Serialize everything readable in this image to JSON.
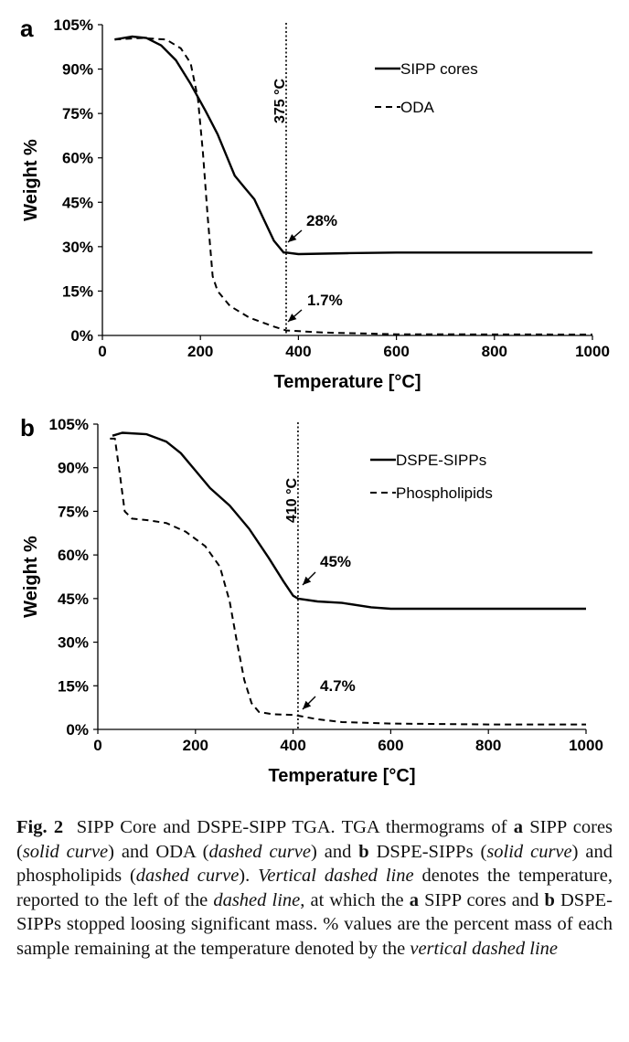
{
  "chart_data": [
    {
      "panel": "a",
      "type": "line",
      "xlabel": "Temperature [°C]",
      "ylabel": "Weight %",
      "xlim": [
        0,
        1000
      ],
      "ylim": [
        0,
        105
      ],
      "xticks": [
        "0",
        "200",
        "400",
        "600",
        "800",
        "1000"
      ],
      "yticks": [
        "0%",
        "15%",
        "30%",
        "45%",
        "60%",
        "75%",
        "90%",
        "105%"
      ],
      "vline": {
        "x": 375,
        "label": "375 °C"
      },
      "legend_position": "top-right",
      "series": [
        {
          "name": "SIPP cores",
          "style": "solid",
          "points": [
            [
              25,
              100
            ],
            [
              60,
              101
            ],
            [
              90,
              100.5
            ],
            [
              120,
              98
            ],
            [
              150,
              93
            ],
            [
              180,
              85
            ],
            [
              210,
              76
            ],
            [
              235,
              68
            ],
            [
              255,
              60
            ],
            [
              270,
              54
            ],
            [
              290,
              50
            ],
            [
              310,
              46
            ],
            [
              330,
              39
            ],
            [
              350,
              32
            ],
            [
              370,
              28
            ],
            [
              375,
              28
            ],
            [
              400,
              27.5
            ],
            [
              500,
              27.8
            ],
            [
              600,
              28
            ],
            [
              800,
              28
            ],
            [
              1000,
              28
            ]
          ]
        },
        {
          "name": "ODA",
          "style": "dashed",
          "points": [
            [
              25,
              100
            ],
            [
              80,
              100.5
            ],
            [
              130,
              100
            ],
            [
              160,
              97
            ],
            [
              180,
              92
            ],
            [
              195,
              80
            ],
            [
              205,
              62
            ],
            [
              215,
              40
            ],
            [
              225,
              20
            ],
            [
              235,
              15
            ],
            [
              260,
              10
            ],
            [
              300,
              6
            ],
            [
              350,
              3
            ],
            [
              375,
              1.7
            ],
            [
              450,
              1
            ],
            [
              600,
              0.4
            ],
            [
              1000,
              0.3
            ]
          ]
        }
      ],
      "annotations": [
        {
          "text": "28%",
          "x": 375,
          "y": 28
        },
        {
          "text": "1.7%",
          "x": 375,
          "y": 1.7
        }
      ]
    },
    {
      "panel": "b",
      "type": "line",
      "xlabel": "Temperature [°C]",
      "ylabel": "Weight %",
      "xlim": [
        0,
        1000
      ],
      "ylim": [
        0,
        105
      ],
      "xticks": [
        "0",
        "200",
        "400",
        "600",
        "800",
        "1000"
      ],
      "yticks": [
        "0%",
        "15%",
        "30%",
        "45%",
        "60%",
        "75%",
        "90%",
        "105%"
      ],
      "vline": {
        "x": 410,
        "label": "410 °C"
      },
      "legend_position": "top-right",
      "series": [
        {
          "name": "DSPE-SIPPs",
          "style": "solid",
          "points": [
            [
              30,
              101
            ],
            [
              50,
              102
            ],
            [
              100,
              101.5
            ],
            [
              140,
              99
            ],
            [
              170,
              95
            ],
            [
              200,
              89
            ],
            [
              230,
              83
            ],
            [
              270,
              77
            ],
            [
              310,
              69
            ],
            [
              350,
              59
            ],
            [
              380,
              51
            ],
            [
              400,
              46
            ],
            [
              410,
              45
            ],
            [
              450,
              44
            ],
            [
              500,
              43.5
            ],
            [
              560,
              42
            ],
            [
              600,
              41.5
            ],
            [
              800,
              41.5
            ],
            [
              1000,
              41.5
            ]
          ]
        },
        {
          "name": "Phospholipids",
          "style": "dashed",
          "points": [
            [
              25,
              100
            ],
            [
              35,
              100
            ],
            [
              45,
              88
            ],
            [
              55,
              75
            ],
            [
              70,
              72.5
            ],
            [
              100,
              72
            ],
            [
              140,
              71
            ],
            [
              180,
              68
            ],
            [
              220,
              63
            ],
            [
              250,
              56
            ],
            [
              270,
              44
            ],
            [
              285,
              30
            ],
            [
              300,
              17
            ],
            [
              315,
              9
            ],
            [
              330,
              6
            ],
            [
              360,
              5.2
            ],
            [
              400,
              5
            ],
            [
              410,
              4.7
            ],
            [
              450,
              3.5
            ],
            [
              500,
              2.5
            ],
            [
              600,
              2
            ],
            [
              800,
              1.7
            ],
            [
              1000,
              1.7
            ]
          ]
        }
      ],
      "annotations": [
        {
          "text": "45%",
          "x": 410,
          "y": 45
        },
        {
          "text": "4.7%",
          "x": 410,
          "y": 4.7
        }
      ]
    }
  ],
  "caption": {
    "fig_label": "Fig. 2",
    "title": "SIPP Core and DSPE-SIPP TGA. TGA thermograms of",
    "a": "a",
    "t1": " SIPP cores (",
    "solid_curve": "solid curve",
    "t2": ") and ODA (",
    "dashed_curve": "dashed curve",
    "t3": ") and",
    "b": "b",
    "t4": " DSPE-SIPPs (",
    "solid_curve_2": "solid curve",
    "t5": ") and phospholipids (",
    "dashed_curve_2": "dashed curve",
    "t6": ").",
    "vertical_dashed_line": "Vertical dashed line",
    "t7": " denotes the temperature, reported to the left of the ",
    "dashed_line": "dashed line",
    "t8": ", at which the ",
    "a2": "a",
    "t9": " SIPP cores and ",
    "b2": "b",
    "t10": " DSPE-SIPPs stopped loosing significant mass. % values are the percent mass of each sample remaining at the temperature denoted by the ",
    "vertical_dashed_line_2": "vertical dashed line"
  }
}
